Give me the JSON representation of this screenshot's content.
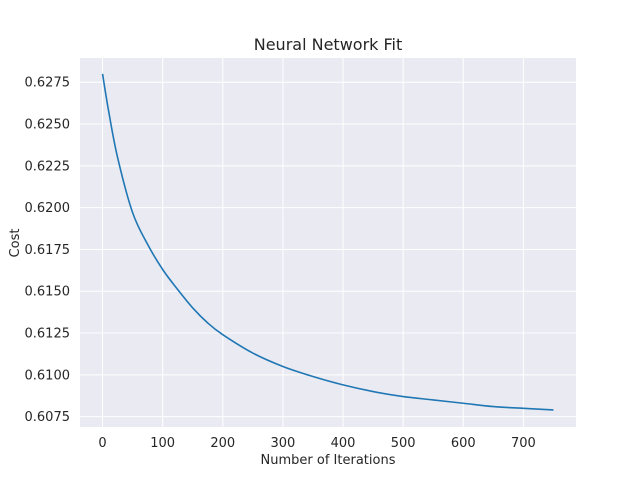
{
  "chart_data": {
    "type": "line",
    "title": "Neural Network Fit",
    "xlabel": "Number of Iterations",
    "ylabel": "Cost",
    "xlim": [
      -37.5,
      787.5
    ],
    "ylim": [
      0.60688,
      0.62895
    ],
    "xticks": [
      0,
      100,
      200,
      300,
      400,
      500,
      600,
      700
    ],
    "xtick_labels": [
      "0",
      "100",
      "200",
      "300",
      "400",
      "500",
      "600",
      "700"
    ],
    "yticks": [
      0.6075,
      0.61,
      0.6125,
      0.615,
      0.6175,
      0.62,
      0.6225,
      0.625,
      0.6275
    ],
    "ytick_labels": [
      "0.6075",
      "0.6100",
      "0.6125",
      "0.6150",
      "0.6175",
      "0.6200",
      "0.6225",
      "0.6250",
      "0.6275"
    ],
    "grid": true,
    "background_color": "#eaeaf2",
    "grid_color": "#ffffff",
    "series": [
      {
        "color": "#1f77b4",
        "x": [
          0,
          10,
          25,
          50,
          75,
          100,
          125,
          150,
          175,
          200,
          250,
          300,
          350,
          400,
          450,
          500,
          550,
          600,
          650,
          700,
          750
        ],
        "y": [
          0.628,
          0.6258,
          0.623,
          0.6197,
          0.6178,
          0.6163,
          0.6151,
          0.614,
          0.6131,
          0.6124,
          0.6113,
          0.6105,
          0.6099,
          0.6094,
          0.609,
          0.6087,
          0.6085,
          0.6083,
          0.6081,
          0.608,
          0.6079
        ]
      }
    ]
  }
}
